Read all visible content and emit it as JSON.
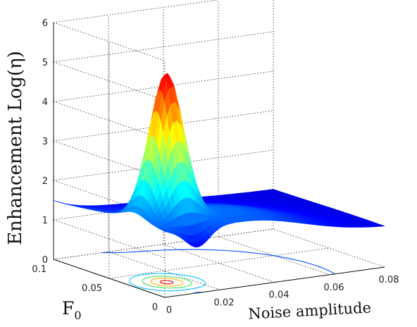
{
  "chart_data": {
    "type": "surface3d",
    "xlabel": "Noise amplitude",
    "ylabel": "F",
    "ylabel_sub": "0",
    "zlabel": "Enhancement Log(η)",
    "x_ticks": [
      "0",
      "0.02",
      "0.04",
      "0.06",
      "0.08"
    ],
    "y_ticks": [
      "0",
      "0.05",
      "0.1"
    ],
    "z_ticks": [
      "0",
      "1",
      "2",
      "3",
      "4",
      "5",
      "6"
    ],
    "xlim": [
      0,
      0.08
    ],
    "ylim": [
      0,
      0.1
    ],
    "zlim": [
      0,
      6
    ],
    "grid": true,
    "colormap": "jet",
    "peak": {
      "noise": 0.012,
      "f0": 0.028,
      "value": 5.3
    },
    "plateau_values": {
      "low_noise_edge": 1.45,
      "high_noise_edge": 1.0,
      "ridge_max": 2.1
    },
    "contour_levels": [
      1.2,
      2,
      3,
      4,
      5
    ],
    "contour_colors": [
      "#0050ff",
      "#00c0ff",
      "#40e060",
      "#ffb000",
      "#e00000"
    ]
  }
}
